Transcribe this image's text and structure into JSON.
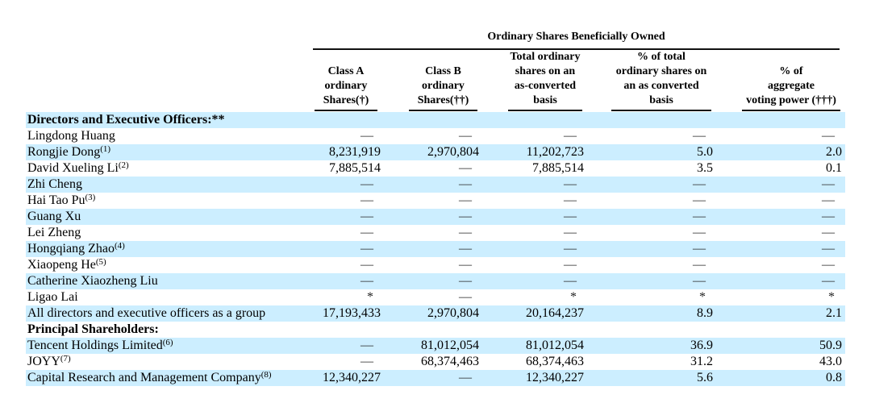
{
  "table": {
    "span_header": "Ordinary Shares Beneficially Owned",
    "columns": [
      {
        "lines": [
          "Class A",
          "ordinary",
          "Shares(†)"
        ]
      },
      {
        "lines": [
          "Class B",
          "ordinary",
          "Shares(††)"
        ]
      },
      {
        "lines": [
          "Total ordinary",
          "shares on an",
          "as-converted",
          "basis"
        ]
      },
      {
        "lines": [
          "% of total",
          "ordinary shares on",
          "an as converted",
          "basis"
        ]
      },
      {
        "lines": [
          "% of",
          "aggregate",
          "voting power (†††)"
        ]
      }
    ],
    "rows": [
      {
        "label": "Directors and Executive Officers:**",
        "sup": "",
        "bold": true,
        "values": [
          "",
          "",
          "",
          "",
          ""
        ]
      },
      {
        "label": "Lingdong Huang",
        "sup": "",
        "bold": false,
        "values": [
          "—",
          "—",
          "—",
          "—",
          "—"
        ]
      },
      {
        "label": "Rongjie Dong",
        "sup": "(1)",
        "bold": false,
        "values": [
          "8,231,919",
          "2,970,804",
          "11,202,723",
          "5.0",
          "2.0"
        ]
      },
      {
        "label": "David Xueling Li",
        "sup": "(2)",
        "bold": false,
        "values": [
          "7,885,514",
          "—",
          "7,885,514",
          "3.5",
          "0.1"
        ]
      },
      {
        "label": "Zhi Cheng",
        "sup": "",
        "bold": false,
        "values": [
          "—",
          "—",
          "—",
          "—",
          "—"
        ]
      },
      {
        "label": "Hai Tao Pu",
        "sup": "(3)",
        "bold": false,
        "values": [
          "—",
          "—",
          "—",
          "—",
          "—"
        ]
      },
      {
        "label": "Guang Xu",
        "sup": "",
        "bold": false,
        "values": [
          "—",
          "—",
          "—",
          "—",
          "—"
        ]
      },
      {
        "label": "Lei Zheng",
        "sup": "",
        "bold": false,
        "values": [
          "—",
          "—",
          "—",
          "—",
          "—"
        ]
      },
      {
        "label": "Hongqiang Zhao",
        "sup": "(4)",
        "bold": false,
        "values": [
          "—",
          "—",
          "—",
          "—",
          "—"
        ]
      },
      {
        "label": "Xiaopeng He",
        "sup": "(5)",
        "bold": false,
        "values": [
          "—",
          "—",
          "—",
          "—",
          "—"
        ]
      },
      {
        "label": "Catherine Xiaozheng Liu",
        "sup": "",
        "bold": false,
        "values": [
          "—",
          "—",
          "—",
          "—",
          "—"
        ]
      },
      {
        "label": "Ligao Lai",
        "sup": "",
        "bold": false,
        "values": [
          "*",
          "—",
          "*",
          "*",
          "*"
        ]
      },
      {
        "label": "All directors and executive officers as a group",
        "sup": "",
        "bold": false,
        "values": [
          "17,193,433",
          "2,970,804",
          "20,164,237",
          "8.9",
          "2.1"
        ]
      },
      {
        "label": "Principal Shareholders:",
        "sup": "",
        "bold": true,
        "values": [
          "",
          "",
          "",
          "",
          ""
        ]
      },
      {
        "label": "Tencent Holdings Limited",
        "sup": "(6)",
        "bold": false,
        "values": [
          "—",
          "81,012,054",
          "81,012,054",
          "36.9",
          "50.9"
        ]
      },
      {
        "label": "JOYY",
        "sup": "(7)",
        "bold": false,
        "values": [
          "—",
          "68,374,463",
          "68,374,463",
          "31.2",
          "43.0"
        ]
      },
      {
        "label": "Capital Research and Management Company",
        "sup": "(8)",
        "bold": false,
        "values": [
          "12,340,227",
          "—",
          "12,340,227",
          "5.6",
          "0.8"
        ]
      }
    ],
    "colors": {
      "row_highlight": "#cceeff",
      "text": "#000000",
      "rule": "#111111"
    }
  }
}
